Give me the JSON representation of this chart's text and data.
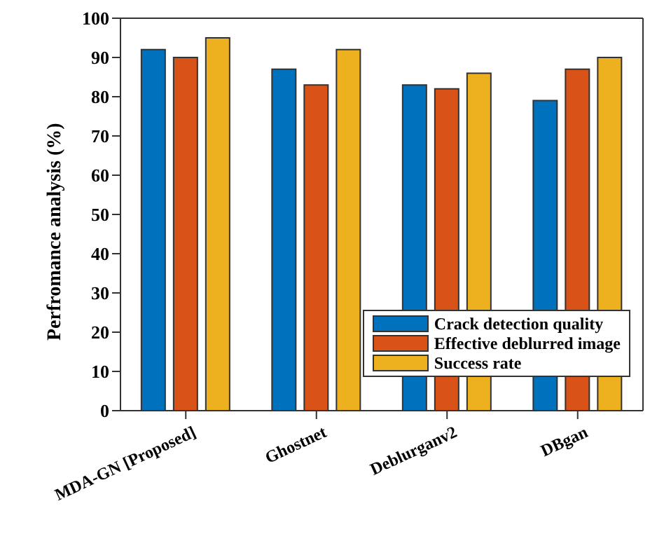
{
  "chart_data": {
    "type": "bar",
    "ylabel": "Perfromance analysis (%)",
    "categories": [
      "MDA-GN [Proposed]",
      "Ghostnet",
      "Deblurganv2",
      "DBgan"
    ],
    "series": [
      {
        "name": "Crack detection quality",
        "color": "#0072bd",
        "values": [
          92,
          87,
          83,
          79
        ]
      },
      {
        "name": "Effective deblurred image",
        "color": "#d95319",
        "values": [
          90,
          83,
          82,
          87
        ]
      },
      {
        "name": "Success rate",
        "color": "#edb120",
        "values": [
          95,
          92,
          86,
          90
        ]
      }
    ],
    "ylim": [
      0,
      100
    ],
    "yticks": [
      0,
      10,
      20,
      30,
      40,
      50,
      60,
      70,
      80,
      90,
      100
    ],
    "grid": false,
    "legend": "bottom right"
  }
}
